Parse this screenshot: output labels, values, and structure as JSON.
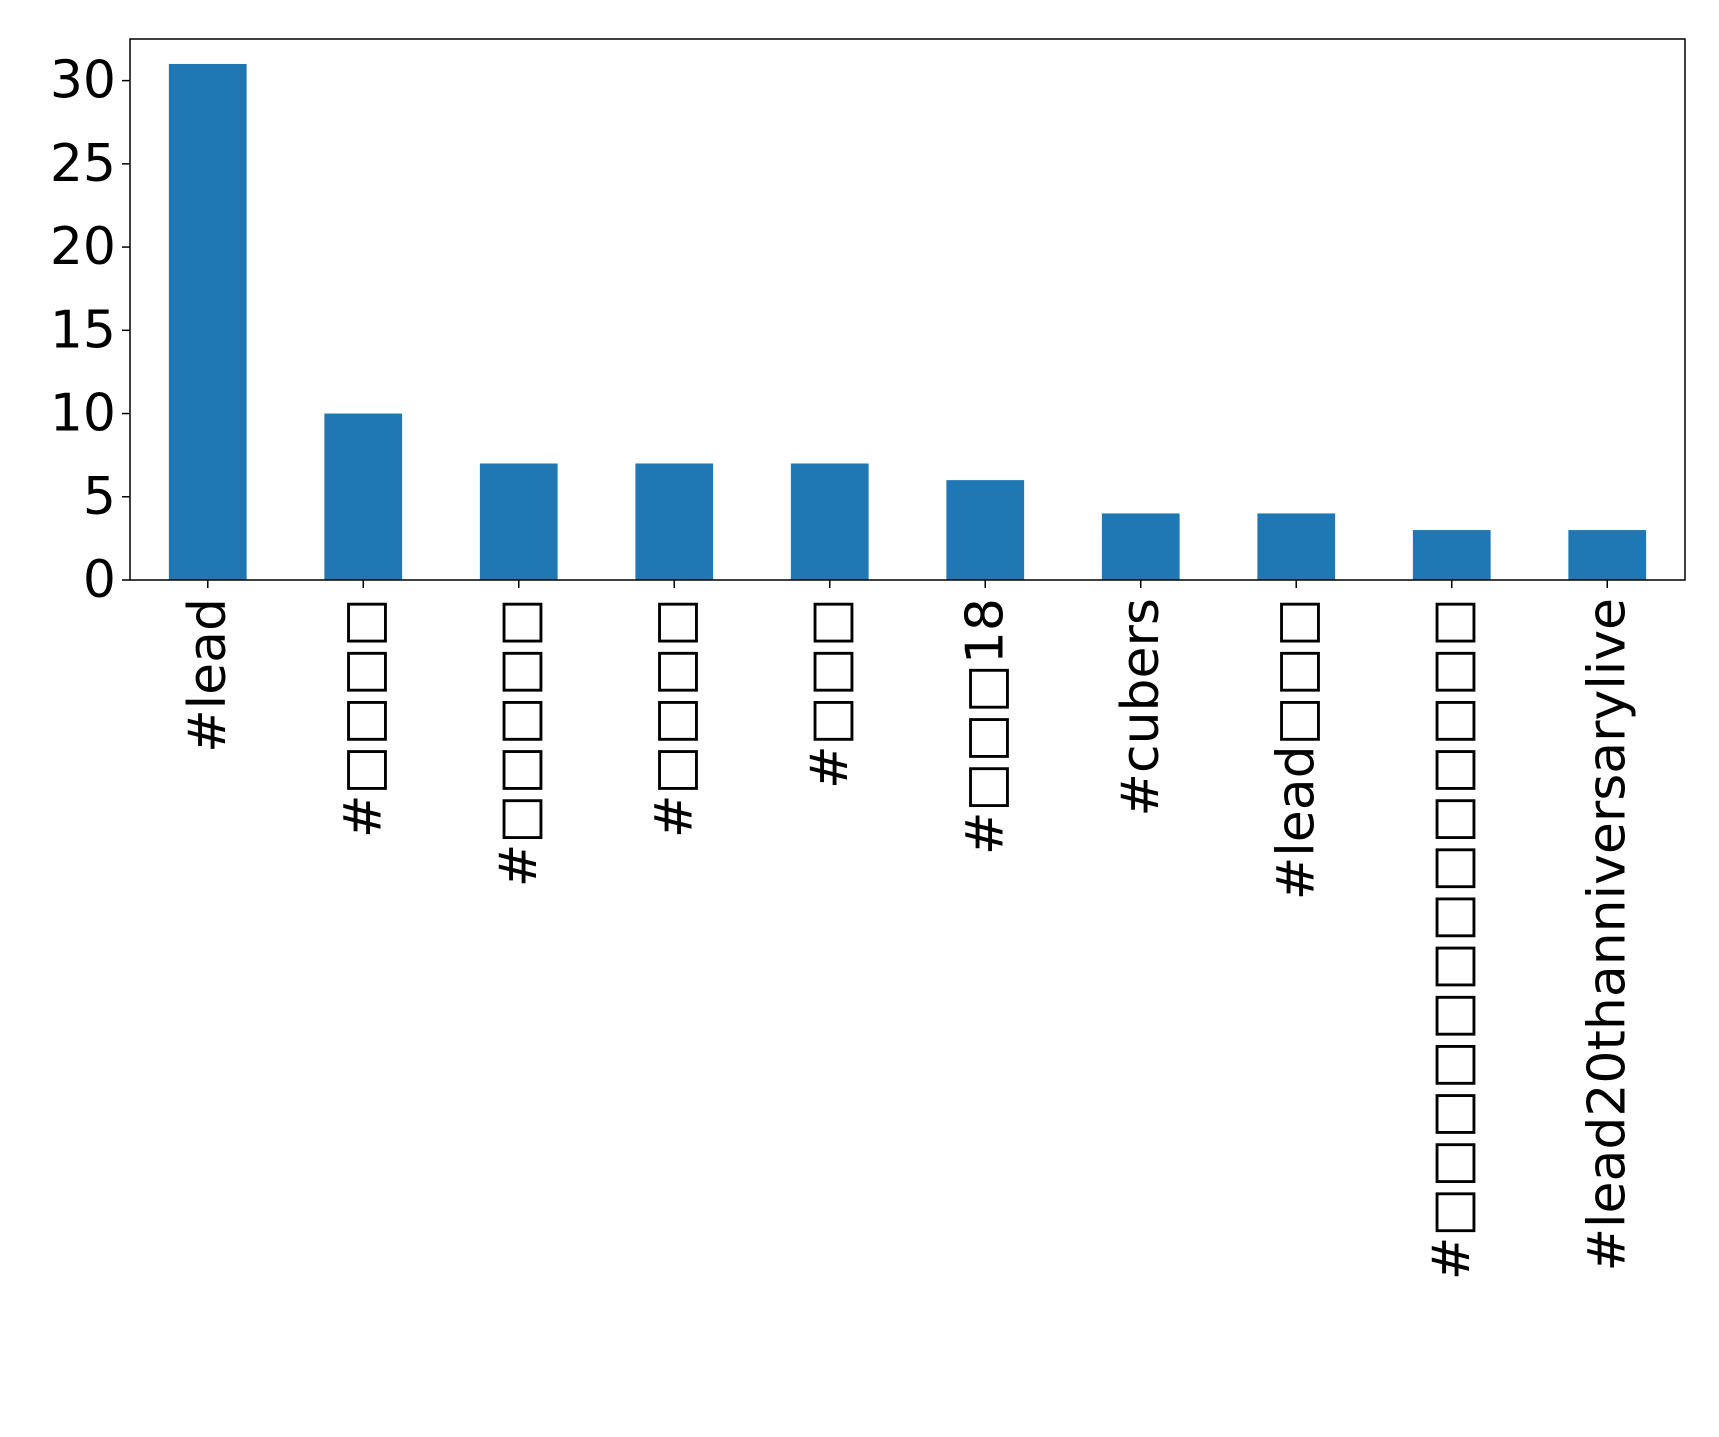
{
  "chart_data": {
    "type": "bar",
    "title": "",
    "xlabel": "",
    "ylabel": "",
    "categories": [
      "#lead",
      "#□□□□",
      "#□□□□□",
      "#□□□□",
      "#□□□",
      "#□□□18",
      "#cubers",
      "#lead□□□",
      "#□□□□□□□□□□□□□",
      "#lead20thanniversarylive"
    ],
    "values": [
      31,
      10,
      7,
      7,
      7,
      6,
      4,
      4,
      3,
      3
    ],
    "ylim": [
      0,
      32.5
    ],
    "yticks": [
      0,
      5,
      10,
      15,
      20,
      25,
      30
    ],
    "grid": false,
    "legend": "none",
    "bar_color": "#1f77b4",
    "axis_color": "#000000"
  }
}
